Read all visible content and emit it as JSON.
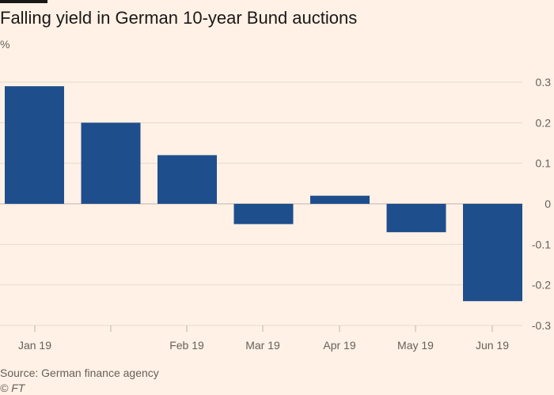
{
  "header": {
    "title": "Falling yield in German 10-year Bund auctions",
    "unit": "%"
  },
  "footer": {
    "source": "Source: German finance agency",
    "credit": "© FT"
  },
  "colors": {
    "background": "#fff1e5",
    "bar": "#1f4e8c",
    "grid": "#e6d9ce",
    "zero_line": "#bfb4ab",
    "text": "#66605c"
  },
  "chart_data": {
    "type": "bar",
    "series": [
      {
        "values": [
          0.29,
          0.2,
          0.12,
          -0.05,
          0.02,
          -0.07,
          -0.24
        ]
      }
    ],
    "x_tick_labels": [
      "Jan 19",
      "Feb 19",
      "Mar 19",
      "Apr 19",
      "May 19",
      "Jun 19"
    ],
    "y_tick_labels": [
      "0.3",
      "0.2",
      "0.1",
      "0",
      "-0.1",
      "-0.2",
      "-0.3"
    ],
    "y_ticks": [
      0.3,
      0.2,
      0.1,
      0,
      -0.1,
      -0.2,
      -0.3
    ],
    "ylim": [
      -0.3,
      0.3
    ],
    "ylabel": "%",
    "grid": true,
    "y_axis_side": "right"
  }
}
